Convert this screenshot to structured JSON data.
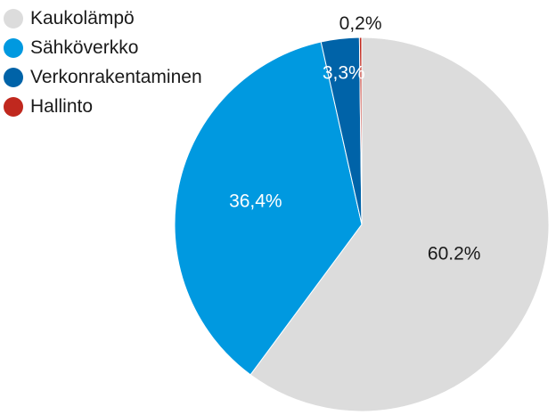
{
  "chart_data": {
    "type": "pie",
    "slices": [
      {
        "label": "Kaukolämpö",
        "value": 60.2,
        "value_label": "60.2%",
        "color": "#dcdcdc",
        "label_color": "#1a1a1a"
      },
      {
        "label": "Sähköverkko",
        "value": 36.4,
        "value_label": "36,4%",
        "color": "#0099e0",
        "label_color": "#ffffff"
      },
      {
        "label": "Verkonrakentaminen",
        "value": 3.3,
        "value_label": "3,3%",
        "color": "#0063a8",
        "label_color": "#ffffff"
      },
      {
        "label": "Hallinto",
        "value": 0.2,
        "value_label": "0,2%",
        "color": "#c0281e",
        "label_color": "#1a1a1a"
      }
    ],
    "legend_position": "top-left",
    "start": "top",
    "direction": "clockwise"
  }
}
